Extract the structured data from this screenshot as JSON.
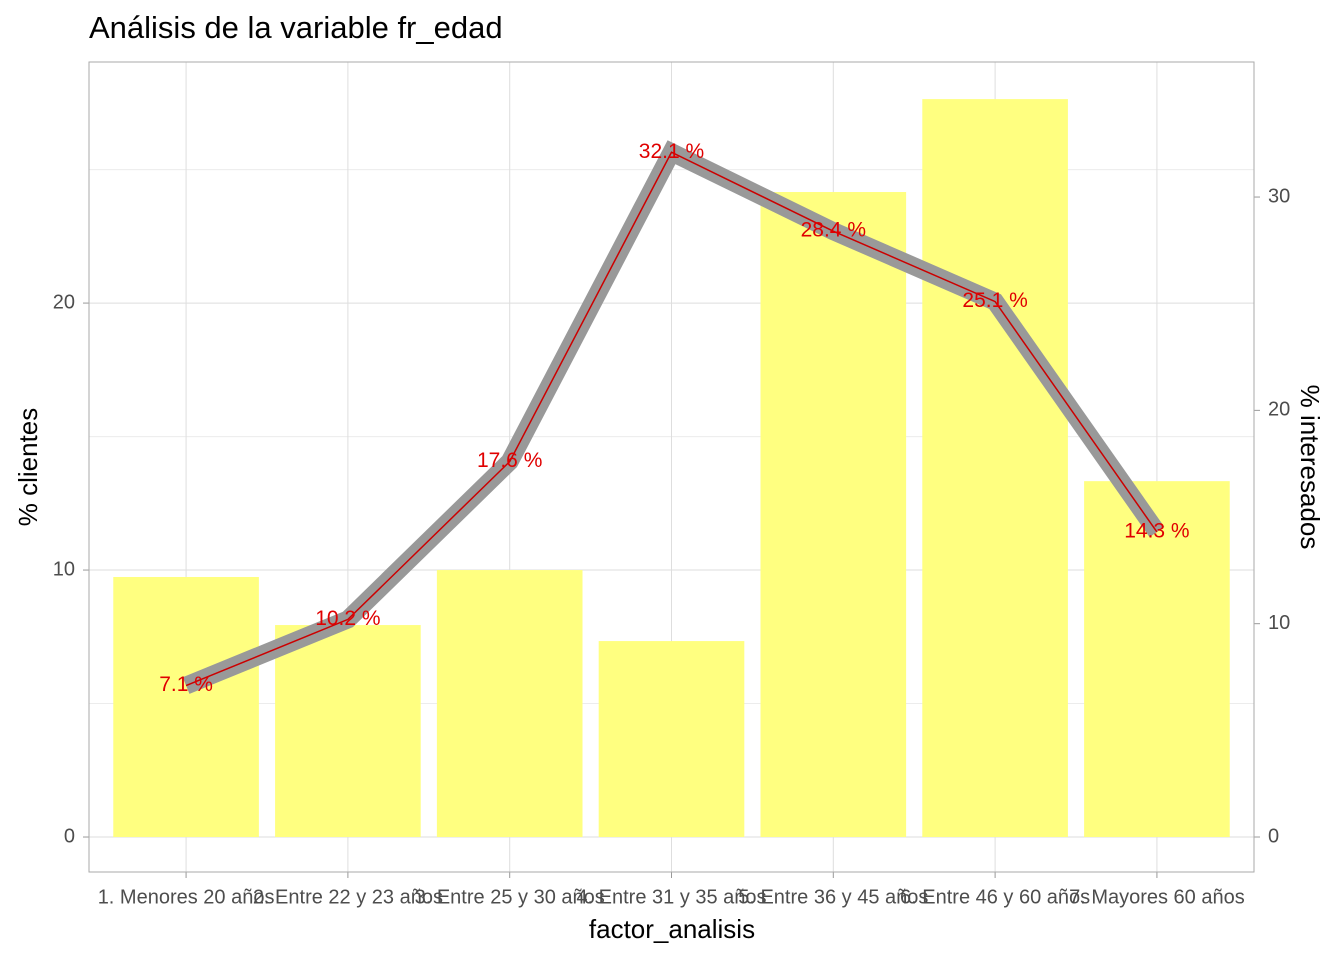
{
  "chart_data": {
    "type": "bar_line",
    "title": "Análisis de la variable fr_edad",
    "x_label": "factor_analisis",
    "y_label": "% clientes",
    "y2_label": "% interesados",
    "categories": [
      "1. Menores 20 años",
      "2. Entre 22 y 23 años",
      "3. Entre 25 y 30 años",
      "4. Entre 31 y 35 años",
      "5. Entre 36 y 45 años",
      "6. Entre 46 y 60 años",
      "7. Mayores 60 años"
    ],
    "ylim": [
      -1.31,
      29.03
    ],
    "yticks": [
      0,
      10,
      20
    ],
    "y_minor_ticks": [
      5,
      15,
      25
    ],
    "y2lim": [
      -1.64,
      36.33
    ],
    "y2ticks": [
      0,
      10,
      20,
      30
    ],
    "grid": true,
    "series": [
      {
        "name": "% clientes",
        "type": "bar",
        "color": "#ffff80",
        "values": [
          9.74,
          7.94,
          10.0,
          7.34,
          24.16,
          27.64,
          13.33
        ]
      },
      {
        "name": "% interesados",
        "type": "line",
        "axis": "y2",
        "color": "#cc0000",
        "band_color": "#999999",
        "values": [
          7.1,
          10.2,
          17.6,
          32.1,
          28.4,
          25.1,
          14.3
        ],
        "value_labels": [
          "7.1  %",
          "10.2  %",
          "17.6  %",
          "32.1  %",
          "28.4  %",
          "25.1  %",
          "14.3  %"
        ]
      }
    ]
  }
}
